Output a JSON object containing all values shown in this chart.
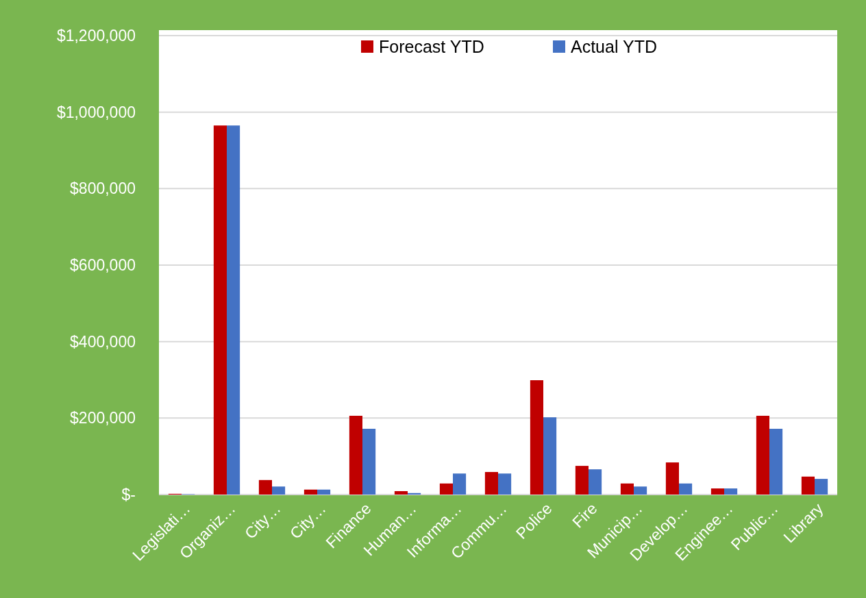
{
  "chart_data": {
    "type": "bar",
    "categories": [
      "Legislati…",
      "Organiz…",
      "City…",
      "City…",
      "Finance",
      "Human…",
      "Informa…",
      "Commu…",
      "Police",
      "Fire",
      "Municip…",
      "Develop…",
      "Enginee…",
      "Public…",
      "Library"
    ],
    "series": [
      {
        "name": "Forecast YTD",
        "color": "#c00000",
        "values": [
          2000,
          965000,
          38000,
          13000,
          206000,
          9000,
          29000,
          59000,
          299000,
          75000,
          29000,
          84000,
          16000,
          206000,
          47000
        ]
      },
      {
        "name": "Actual YTD",
        "color": "#4472c4",
        "values": [
          1000,
          965000,
          21000,
          13000,
          172000,
          4000,
          55000,
          55000,
          202000,
          66000,
          21000,
          29000,
          16000,
          172000,
          41000
        ]
      }
    ],
    "ylim": [
      0,
      1200000
    ],
    "yticks": [
      {
        "value": 0,
        "label": "$-"
      },
      {
        "value": 200000,
        "label": "$200,000"
      },
      {
        "value": 400000,
        "label": "$400,000"
      },
      {
        "value": 600000,
        "label": "$600,000"
      },
      {
        "value": 800000,
        "label": "$800,000"
      },
      {
        "value": 1000000,
        "label": "$1,000,000"
      },
      {
        "value": 1200000,
        "label": "$1,200,000"
      }
    ],
    "grid": "y",
    "legend": "top"
  }
}
